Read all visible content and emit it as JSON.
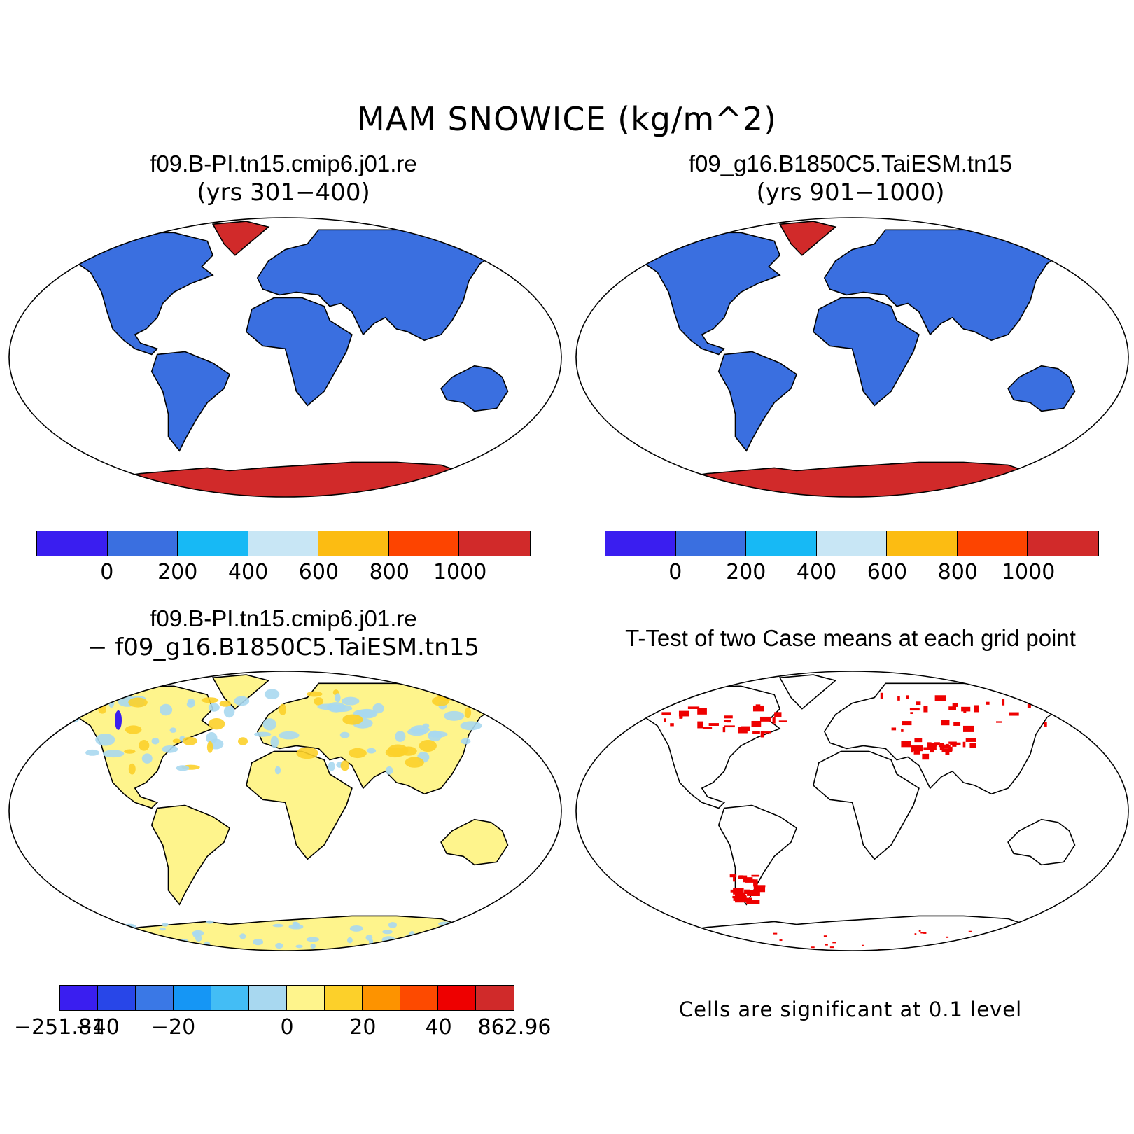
{
  "figure_title": "MAM SNOWICE (kg/m^2)",
  "panels": [
    {
      "title": "f09.B-PI.tn15.cmip6.j01.re",
      "subtitle": "(yrs 301−400)"
    },
    {
      "title": "f09_g16.B1850C5.TaiESM.tn15",
      "subtitle": "(yrs 901−1000)"
    },
    {
      "title": "f09.B-PI.tn15.cmip6.j01.re",
      "subtitle": "− f09_g16.B1850C5.TaiESM.tn15"
    },
    {
      "title": "T-Test of two Case means at each grid point",
      "subtitle": ""
    }
  ],
  "colorbar_abs": {
    "colors": [
      "#3a1ef0",
      "#3a6fe0",
      "#17b9f5",
      "#c8e6f5",
      "#fcbc12",
      "#fd4400",
      "#d12a2a"
    ],
    "ticks": [
      "0",
      "200",
      "400",
      "600",
      "800",
      "1000"
    ]
  },
  "colorbar_diff": {
    "colors": [
      "#3a1ef0",
      "#2846e8",
      "#3a78e6",
      "#1596f5",
      "#43bdf5",
      "#a8d8f0",
      "#fef48c",
      "#fcd02a",
      "#fd9300",
      "#fd4a00",
      "#ee0000",
      "#d02a2a"
    ],
    "ticks": [
      "−251.81",
      "−40",
      "−20",
      "0",
      "20",
      "40",
      "862.96"
    ]
  },
  "significance_note": "Cells are significant at 0.1 level",
  "map_fill": {
    "abs_land": "#3a6fe0",
    "abs_ice": "#d12a2a",
    "diff_land": "#fef48c",
    "diff_cool": "#a8d8f0",
    "sig": "#ee0000"
  },
  "chart_data": {
    "type": "map",
    "variable": "MAM SNOWICE (kg/m^2)",
    "projection": "Robinson",
    "note": "Cells are significant at 0.1 level"
  }
}
